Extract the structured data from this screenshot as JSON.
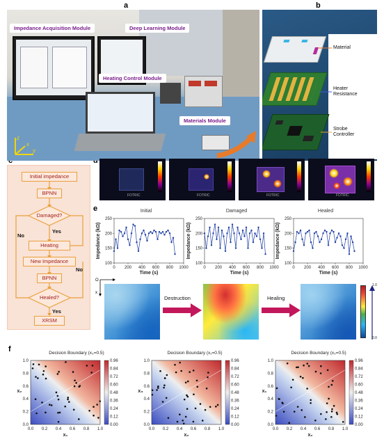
{
  "panels": {
    "a": "a",
    "b": "b",
    "c": "c",
    "d": "d",
    "e": "e",
    "f": "f"
  },
  "photo_labels": {
    "impedance": "Impedance Acquisition Module",
    "deep_learning": "Deep Learning Module",
    "heating": "Heating Control Module",
    "materials": "Materials Module"
  },
  "axes_labels": {
    "x": "x",
    "y": "y",
    "z": "z"
  },
  "board_labels": {
    "material": "Material",
    "heater": "Heater\nResistance",
    "strobe": "Strobe\nController"
  },
  "flowchart": {
    "initial": "Initial impedance",
    "bpnn1": "BPNN",
    "damaged": "Damaged?",
    "yes1": "Yes",
    "heating": "Heating",
    "new_imp": "New Impedance",
    "bpnn2": "BPNN",
    "healed": "Healed?",
    "yes2": "Yes",
    "xrsm": "XRSM",
    "no1": "No",
    "no2": "No"
  },
  "thermal": {
    "brand": "FOTRIC"
  },
  "impedance_plots": {
    "titles": [
      "Initial",
      "Damaged",
      "Healed"
    ],
    "ylabel": "Impedance (kΩ)",
    "xlabel": "Time (s)"
  },
  "heatmap_row": {
    "origin": "O",
    "xaxis": "y",
    "yaxis": "x",
    "destruction": "Destruction",
    "healing": "Healing",
    "colorbar_top": "1.0",
    "colorbar_bottom": "0.0"
  },
  "decision": {
    "titles": [
      "Decision Boundary (x₃=0.5)",
      "Decision Boundary (x₁=0.5)",
      "Decision Boundary (x₂=0.5)"
    ],
    "xlabels": [
      "x₁",
      "x₂",
      "x₂"
    ],
    "ylabels": [
      "x₂",
      "x₃",
      "x₁"
    ],
    "ticks": [
      "0.0",
      "0.2",
      "0.4",
      "0.6",
      "0.8",
      "1.0"
    ],
    "cbar_ticks": [
      "0.96",
      "0.84",
      "0.72",
      "0.60",
      "0.48",
      "0.36",
      "0.24",
      "0.12",
      "0.00"
    ]
  },
  "chart_data": [
    {
      "type": "line",
      "title": "Initial",
      "xlabel": "Time (s)",
      "ylabel": "Impedance (kΩ)",
      "xlim": [
        0,
        1000
      ],
      "ylim": [
        100,
        250
      ],
      "x": [
        0,
        25,
        50,
        75,
        100,
        125,
        150,
        175,
        200,
        225,
        250,
        275,
        300,
        325,
        350,
        375,
        400,
        425,
        450,
        475,
        500,
        525,
        550,
        575,
        600,
        625,
        650,
        675,
        700,
        725,
        750,
        775,
        800,
        825,
        850,
        875
      ],
      "y": [
        140,
        180,
        150,
        210,
        205,
        190,
        200,
        220,
        180,
        160,
        200,
        230,
        225,
        170,
        140,
        180,
        200,
        210,
        195,
        175,
        200,
        205,
        200,
        210,
        205,
        180,
        205,
        200,
        205,
        195,
        205,
        210,
        200,
        170,
        185,
        130
      ]
    },
    {
      "type": "line",
      "title": "Damaged",
      "xlabel": "Time (s)",
      "ylabel": "Impedance (kΩ)",
      "xlim": [
        0,
        1000
      ],
      "ylim": [
        100,
        250
      ],
      "x": [
        0,
        25,
        50,
        75,
        100,
        125,
        150,
        175,
        200,
        225,
        250,
        275,
        300,
        325,
        350,
        375,
        400,
        425,
        450,
        475,
        500,
        525,
        550,
        575,
        600,
        625,
        650,
        675,
        700,
        725,
        750,
        775,
        800,
        825,
        850,
        875
      ],
      "y": [
        200,
        150,
        190,
        220,
        160,
        200,
        230,
        180,
        220,
        150,
        210,
        190,
        140,
        200,
        220,
        170,
        230,
        200,
        150,
        220,
        200,
        180,
        210,
        190,
        220,
        150,
        200,
        210,
        170,
        200,
        190,
        220,
        180,
        150,
        200,
        130
      ]
    },
    {
      "type": "line",
      "title": "Healed",
      "xlabel": "Time (s)",
      "ylabel": "Impedance (kΩ)",
      "xlim": [
        0,
        1000
      ],
      "ylim": [
        100,
        250
      ],
      "x": [
        0,
        25,
        50,
        75,
        100,
        125,
        150,
        175,
        200,
        225,
        250,
        275,
        300,
        325,
        350,
        375,
        400,
        425,
        450,
        475,
        500,
        525,
        550,
        575,
        600,
        625,
        650,
        675,
        700,
        725,
        750,
        775,
        800,
        825,
        850,
        875
      ],
      "y": [
        140,
        170,
        205,
        200,
        210,
        180,
        160,
        200,
        205,
        210,
        170,
        150,
        200,
        205,
        190,
        170,
        180,
        200,
        210,
        205,
        160,
        200,
        210,
        205,
        170,
        185,
        200,
        190,
        160,
        150,
        180,
        200,
        130,
        190,
        170,
        140
      ]
    }
  ]
}
